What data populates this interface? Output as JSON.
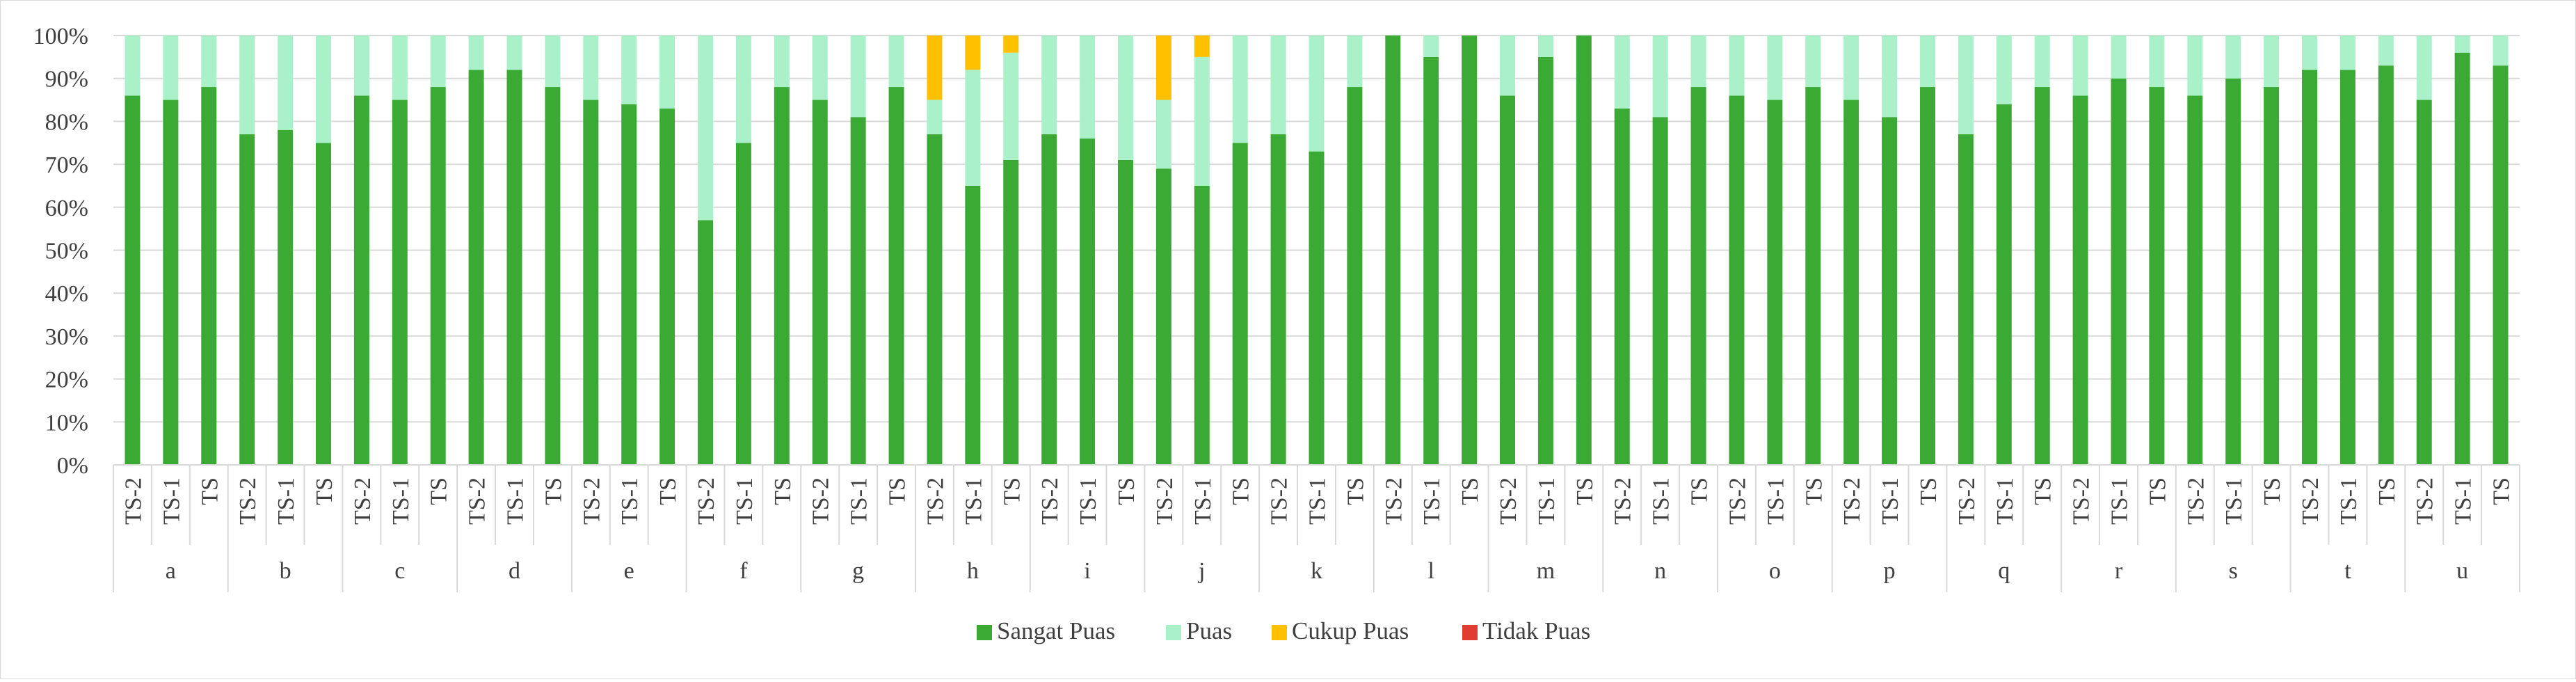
{
  "chart_data": {
    "type": "bar",
    "stacked": true,
    "percent_stacked": true,
    "ylim": [
      0,
      100
    ],
    "y_ticks": [
      "0%",
      "10%",
      "20%",
      "30%",
      "40%",
      "50%",
      "60%",
      "70%",
      "80%",
      "90%",
      "100%"
    ],
    "grid": true,
    "legend_position": "bottom",
    "groups": [
      "a",
      "b",
      "c",
      "d",
      "e",
      "f",
      "g",
      "h",
      "i",
      "j",
      "k",
      "l",
      "m",
      "n",
      "o",
      "p",
      "q",
      "r",
      "s",
      "t",
      "u"
    ],
    "sub_categories": [
      "TS-2",
      "TS-1",
      "TS"
    ],
    "series": [
      {
        "name": "Sangat Puas",
        "color": "#3aaa35",
        "values": [
          86,
          85,
          88,
          77,
          78,
          75,
          86,
          85,
          88,
          92,
          92,
          88,
          85,
          84,
          83,
          57,
          75,
          88,
          85,
          81,
          88,
          77,
          65,
          71,
          77,
          76,
          71,
          69,
          65,
          75,
          77,
          73,
          88,
          100,
          95,
          100,
          86,
          95,
          100,
          83,
          81,
          88,
          86,
          85,
          88,
          85,
          81,
          88,
          77,
          84,
          88,
          86,
          90,
          88,
          86,
          90,
          88,
          92,
          92,
          93,
          85,
          96,
          93
        ]
      },
      {
        "name": "Puas",
        "color": "#aaf0c8",
        "values": [
          14,
          15,
          12,
          23,
          22,
          25,
          14,
          15,
          12,
          8,
          8,
          12,
          15,
          16,
          17,
          43,
          25,
          12,
          15,
          19,
          12,
          8,
          27,
          25,
          23,
          24,
          29,
          16,
          30,
          25,
          23,
          27,
          12,
          0,
          5,
          0,
          14,
          5,
          0,
          17,
          19,
          12,
          14,
          15,
          12,
          15,
          19,
          12,
          23,
          16,
          12,
          14,
          10,
          12,
          14,
          10,
          12,
          8,
          8,
          7,
          15,
          4,
          7
        ]
      },
      {
        "name": "Cukup Puas",
        "color": "#ffc000",
        "values": [
          0,
          0,
          0,
          0,
          0,
          0,
          0,
          0,
          0,
          0,
          0,
          0,
          0,
          0,
          0,
          0,
          0,
          0,
          0,
          0,
          0,
          15,
          8,
          4,
          0,
          0,
          0,
          15,
          5,
          0,
          0,
          0,
          0,
          0,
          0,
          0,
          0,
          0,
          0,
          0,
          0,
          0,
          0,
          0,
          0,
          0,
          0,
          0,
          0,
          0,
          0,
          0,
          0,
          0,
          0,
          0,
          0,
          0,
          0,
          0,
          0,
          0,
          0
        ]
      },
      {
        "name": "Tidak Puas",
        "color": "#e03c31",
        "values": [
          0,
          0,
          0,
          0,
          0,
          0,
          0,
          0,
          0,
          0,
          0,
          0,
          0,
          0,
          0,
          0,
          0,
          0,
          0,
          0,
          0,
          0,
          0,
          0,
          0,
          0,
          0,
          0,
          0,
          0,
          0,
          0,
          0,
          0,
          0,
          0,
          0,
          0,
          0,
          0,
          0,
          0,
          0,
          0,
          0,
          0,
          0,
          0,
          0,
          0,
          0,
          0,
          0,
          0,
          0,
          0,
          0,
          0,
          0,
          0,
          0,
          0,
          0
        ]
      }
    ]
  }
}
